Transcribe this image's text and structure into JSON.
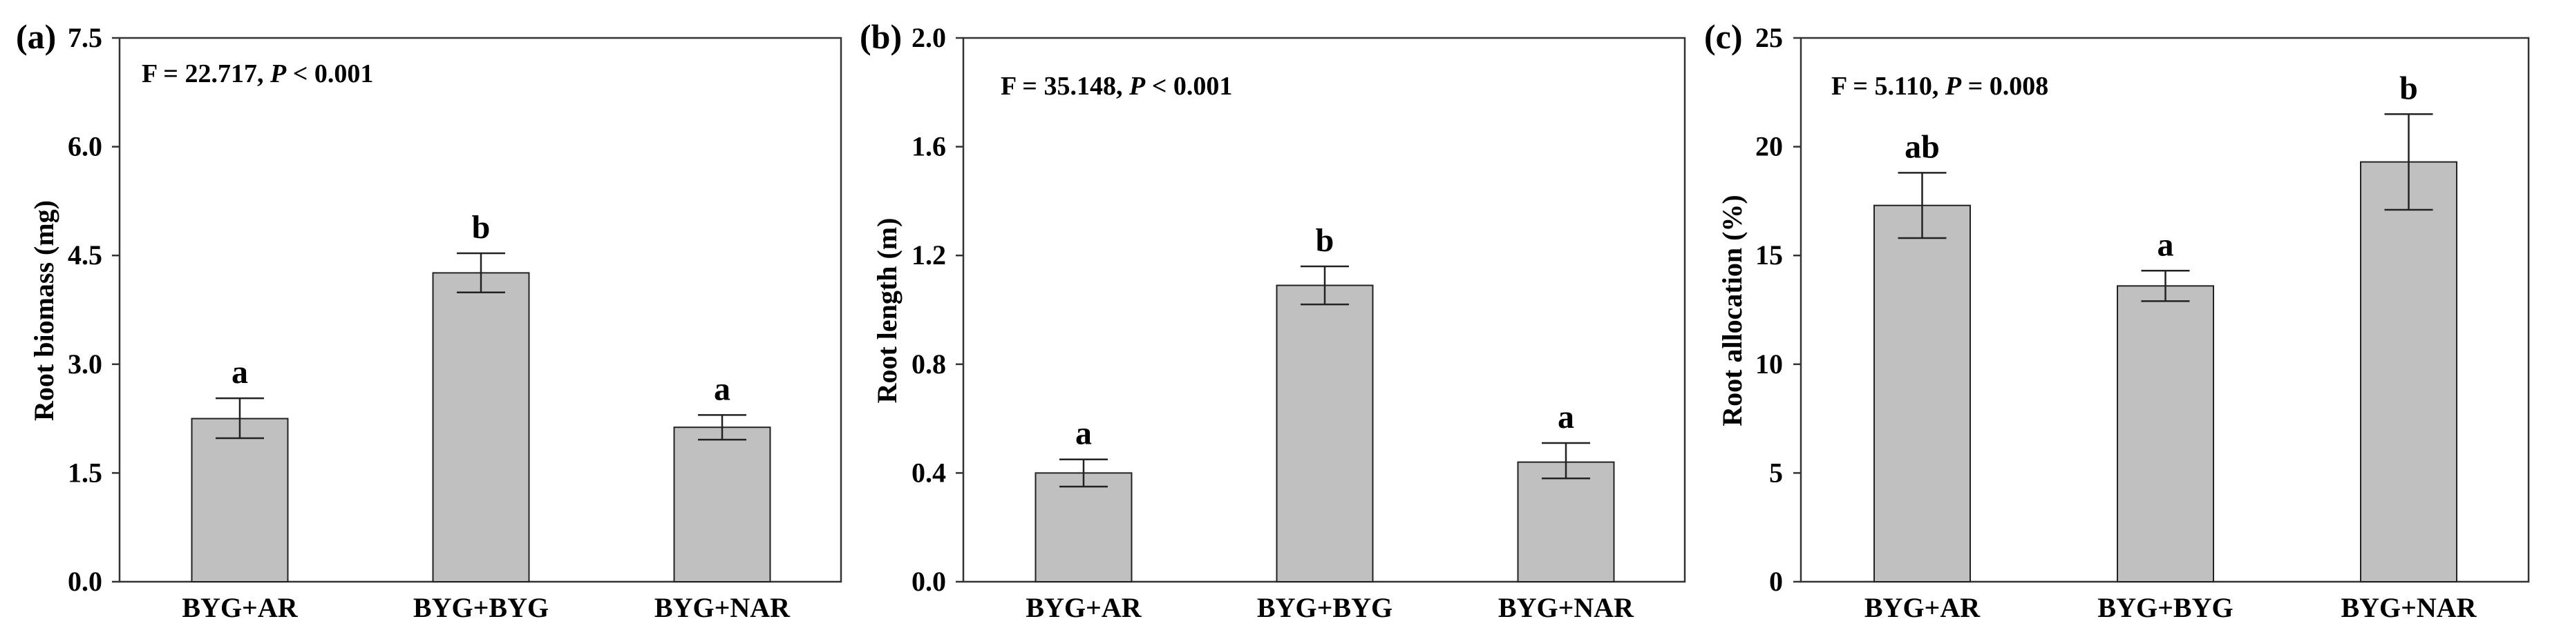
{
  "figure": {
    "panels": [
      {
        "id": "a",
        "panel_label": "(a)",
        "ylabel": "Root biomass (mg)",
        "stat": {
          "prefix": "F = 22.717, ",
          "p_symbol": "P",
          "suffix": " < 0.001"
        },
        "yticks": [
          "0.0",
          "1.5",
          "3.0",
          "4.5",
          "6.0",
          "7.5"
        ]
      },
      {
        "id": "b",
        "panel_label": "(b)",
        "ylabel": "Root length (m)",
        "stat": {
          "prefix": "F = 35.148, ",
          "p_symbol": "P",
          "suffix": " < 0.001"
        },
        "yticks": [
          "0.0",
          "0.4",
          "0.8",
          "1.2",
          "1.6",
          "2.0"
        ]
      },
      {
        "id": "c",
        "panel_label": "(c)",
        "ylabel": "Root allocation (%)",
        "stat": {
          "prefix": "F = 5.110, ",
          "p_symbol": "P",
          "suffix": " = 0.008"
        },
        "yticks": [
          "0",
          "5",
          "10",
          "15",
          "20",
          "25"
        ]
      }
    ]
  },
  "colors": {
    "bar_fill": "#c0c0c0",
    "bar_stroke": "#222222",
    "axis": "#333333",
    "text": "#000000"
  },
  "chart_data": [
    {
      "type": "bar",
      "title": "(a)",
      "annotation": "F = 22.717, P < 0.001",
      "categories": [
        "BYG+AR",
        "BYG+BYG",
        "BYG+NAR"
      ],
      "values": [
        2.25,
        4.26,
        2.13
      ],
      "error_upper": [
        2.53,
        4.53,
        2.3
      ],
      "error_lower": [
        1.98,
        3.99,
        1.96
      ],
      "significance_letters": [
        "a",
        "b",
        "a"
      ],
      "xlabel": "",
      "ylabel": "Root biomass (mg)",
      "ylim": [
        0,
        7.5
      ],
      "yticks": [
        0.0,
        1.5,
        3.0,
        4.5,
        6.0,
        7.5
      ],
      "grid": false,
      "legend": null
    },
    {
      "type": "bar",
      "title": "(b)",
      "annotation": "F = 35.148, P < 0.001",
      "categories": [
        "BYG+AR",
        "BYG+BYG",
        "BYG+NAR"
      ],
      "values": [
        0.4,
        1.09,
        0.44
      ],
      "error_upper": [
        0.45,
        1.16,
        0.51
      ],
      "error_lower": [
        0.35,
        1.02,
        0.38
      ],
      "significance_letters": [
        "a",
        "b",
        "a"
      ],
      "xlabel": "",
      "ylabel": "Root length (m)",
      "ylim": [
        0,
        2.0
      ],
      "yticks": [
        0.0,
        0.4,
        0.8,
        1.2,
        1.6,
        2.0
      ],
      "grid": false,
      "legend": null
    },
    {
      "type": "bar",
      "title": "(c)",
      "annotation": "F = 5.110, P = 0.008",
      "categories": [
        "BYG+AR",
        "BYG+BYG",
        "BYG+NAR"
      ],
      "values": [
        17.3,
        13.6,
        19.3
      ],
      "error_upper": [
        18.8,
        14.3,
        21.5
      ],
      "error_lower": [
        15.8,
        12.9,
        17.1
      ],
      "significance_letters": [
        "ab",
        "a",
        "b"
      ],
      "xlabel": "",
      "ylabel": "Root allocation (%)",
      "ylim": [
        0,
        25
      ],
      "yticks": [
        0,
        5,
        10,
        15,
        20,
        25
      ],
      "grid": false,
      "legend": null
    }
  ]
}
